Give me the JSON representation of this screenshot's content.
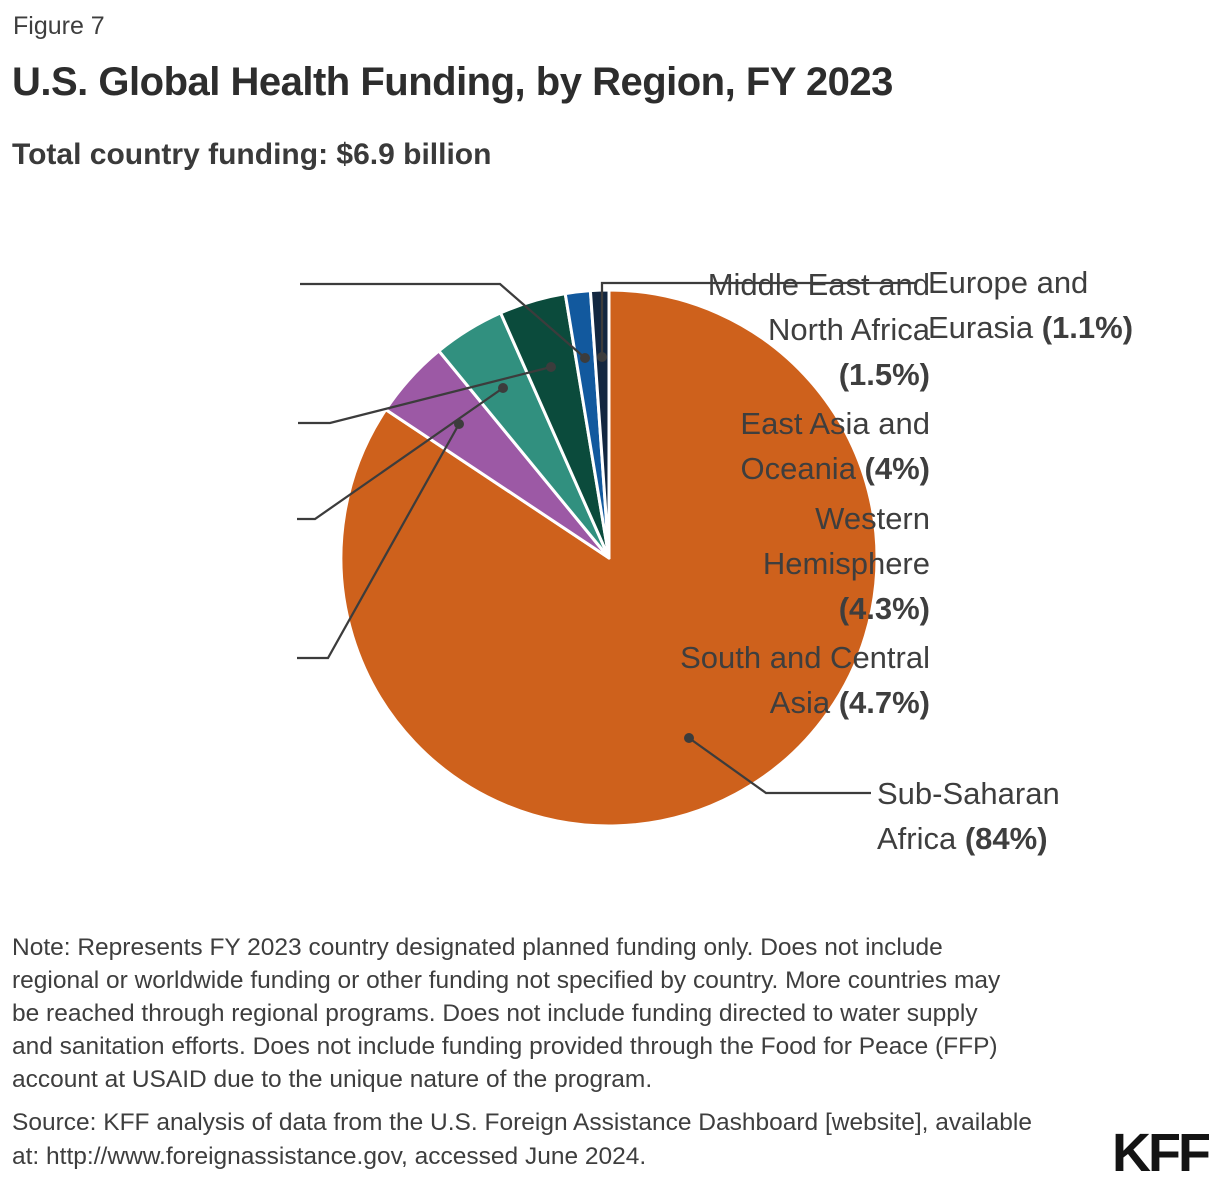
{
  "figure_label": "Figure 7",
  "title": "U.S. Global Health Funding, by Region, FY 2023",
  "subtitle": "Total country funding: $6.9 billion",
  "logo": "KFF",
  "colors": {
    "background": "#FFFFFF",
    "title_text": "#2D2D2D",
    "body_text": "#3E3E3E",
    "leader": "#3C3C3C",
    "slice_border": "#FFFFFF"
  },
  "note_lines": [
    "Note: Represents FY 2023 country designated planned funding only. Does not include",
    "regional or worldwide funding or other funding not specified by country. More countries may",
    "be reached through regional programs. Does not include funding directed to water supply",
    "and sanitation efforts. Does not include funding provided through the Food for Peace (FFP)",
    "account at USAID due to the unique nature of the program."
  ],
  "source_lines": [
    "Source: KFF analysis of data from the U.S. Foreign Assistance Dashboard [website], available",
    "at: http://www.foreignassistance.gov, accessed June 2024."
  ],
  "chart_data": {
    "type": "pie",
    "title": "U.S. Global Health Funding, by Region, FY 2023",
    "total_label": "Total country funding: $6.9 billion",
    "total_billion_usd": 6.9,
    "unit": "percent of total country funding",
    "start_angle_deg": 0,
    "direction": "clockwise",
    "legend_position": "callout-labels",
    "segments": [
      {
        "name": "Sub-Saharan Africa",
        "value": 84,
        "pct_label": "84%",
        "color": "#CE611C",
        "label_lines": [
          "Sub-Saharan",
          "Africa (84%)"
        ]
      },
      {
        "name": "South and Central Asia",
        "value": 4.7,
        "pct_label": "4.7%",
        "color": "#9C59A5",
        "label_lines": [
          "South and Central",
          "Asia (4.7%)"
        ]
      },
      {
        "name": "Western Hemisphere",
        "value": 4.3,
        "pct_label": "4.3%",
        "color": "#31907F",
        "label_lines": [
          "Western",
          "Hemisphere",
          "(4.3%)"
        ]
      },
      {
        "name": "East Asia and Oceania",
        "value": 4,
        "pct_label": "4%",
        "color": "#0B4B3C",
        "label_lines": [
          "East Asia and",
          "Oceania (4%)"
        ]
      },
      {
        "name": "Middle East and North Africa",
        "value": 1.5,
        "pct_label": "1.5%",
        "color": "#12599E",
        "label_lines": [
          "Middle East and",
          "North Africa",
          "(1.5%)"
        ]
      },
      {
        "name": "Europe and Eurasia",
        "value": 1.1,
        "pct_label": "1.1%",
        "color": "#132740",
        "label_lines": [
          "Europe and",
          "Eurasia (1.1%)"
        ]
      }
    ]
  }
}
